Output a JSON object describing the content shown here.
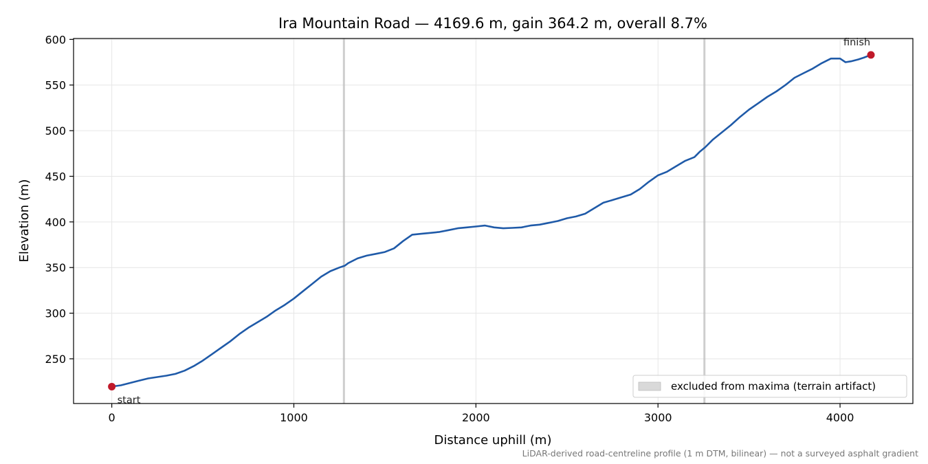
{
  "chart_data": {
    "type": "line",
    "title": "Ira Mountain Road — 4169.6 m, gain 364.2 m, overall 8.7%",
    "xlabel": "Distance uphill (m)",
    "ylabel": "Elevation (m)",
    "xlim": [
      -210,
      4400
    ],
    "ylim": [
      201,
      601
    ],
    "xticks": [
      0,
      1000,
      2000,
      3000,
      4000
    ],
    "yticks": [
      250,
      300,
      350,
      400,
      450,
      500,
      550,
      600
    ],
    "grid": true,
    "legend_placement": "lower-right",
    "colors": {
      "line": "#1f5aa8",
      "marker": "#c0192a",
      "excluded": "#bdbdbd"
    },
    "series": [
      {
        "x": [
          0,
          50,
          100,
          150,
          200,
          250,
          300,
          350,
          400,
          450,
          500,
          550,
          600,
          650,
          700,
          750,
          800,
          850,
          900,
          950,
          1000,
          1050,
          1100,
          1150,
          1200,
          1250,
          1280,
          1300,
          1350,
          1400,
          1450,
          1500,
          1550,
          1600,
          1650,
          1700,
          1750,
          1800,
          1850,
          1900,
          1950,
          2000,
          2050,
          2100,
          2150,
          2200,
          2250,
          2300,
          2350,
          2400,
          2450,
          2500,
          2550,
          2600,
          2650,
          2700,
          2750,
          2800,
          2850,
          2900,
          2950,
          3000,
          3050,
          3100,
          3150,
          3200,
          3230,
          3260,
          3300,
          3350,
          3400,
          3450,
          3500,
          3550,
          3600,
          3650,
          3700,
          3750,
          3800,
          3850,
          3900,
          3950,
          4000,
          4030,
          4060,
          4100,
          4130,
          4169.6
        ],
        "values": [
          219.5,
          221,
          223.5,
          226,
          228.5,
          230,
          231.5,
          233.5,
          237,
          242,
          248,
          255,
          262,
          269,
          277,
          284,
          290,
          296,
          303,
          309,
          316,
          324,
          332,
          340,
          346,
          350,
          352,
          355,
          360,
          363,
          365,
          367,
          371,
          379,
          386,
          387,
          388,
          389,
          391,
          393,
          394,
          395,
          396,
          394,
          393,
          393.5,
          394,
          396,
          397,
          399,
          401,
          404,
          406,
          409,
          415,
          421,
          424,
          427,
          430,
          436,
          444,
          451,
          455,
          461,
          467,
          471,
          477,
          482,
          490,
          498,
          506,
          515,
          523,
          530,
          537,
          543,
          550,
          558,
          563,
          568,
          574,
          579,
          579,
          575,
          576,
          578,
          580,
          583
        ]
      }
    ],
    "markers": [
      {
        "x": 0,
        "y": 219.5,
        "label": "start"
      },
      {
        "x": 4169.6,
        "y": 583,
        "label": "finish"
      }
    ],
    "excluded_x": [
      1275,
      3255
    ],
    "legend": [
      {
        "label": "excluded from maxima (terrain artifact)"
      }
    ],
    "footnote": "LiDAR-derived road-centreline profile (1 m DTM, bilinear) — not a surveyed asphalt gradient"
  }
}
